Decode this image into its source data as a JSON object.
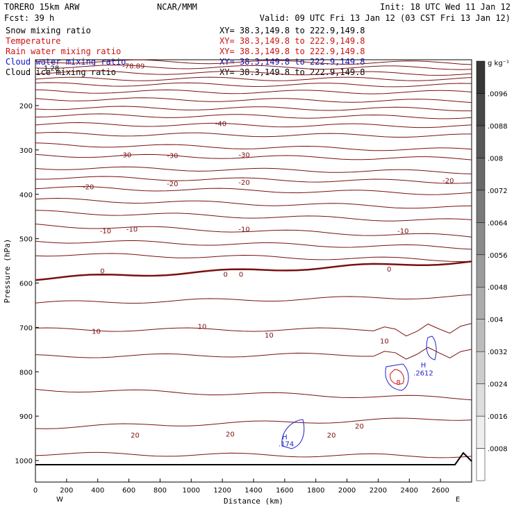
{
  "header": {
    "model": "TORERO  15km ARW",
    "center": "NCAR/MMM",
    "init": "Init: 18 UTC Wed 11 Jan 12",
    "fcst": "Fcst:   39 h",
    "valid": "Valid: 09 UTC Fri 13 Jan 12 (03 CST Fri 13 Jan 12)"
  },
  "fields": [
    {
      "label": "Snow mixing ratio",
      "xy": "XY=  38.3,149.8 to 222.9,149.8",
      "color": "#000000"
    },
    {
      "label": "Temperature",
      "xy": "XY=  38.3,149.8 to 222.9,149.8",
      "color": "#cc1111"
    },
    {
      "label": "Rain water mixing ratio",
      "xy": "XY=  38.3,149.8 to 222.9,149.8",
      "color": "#cc1111"
    },
    {
      "label": "Cloud water mixing ratio",
      "xy": "XY=  38.3,149.8 to 222.9,149.8",
      "color": "#1111cc"
    },
    {
      "label": "Cloud ice mixing ratio",
      "xy": "XY=  38.3,149.8 to 222.9,149.8",
      "color": "#000000"
    }
  ],
  "chart_data": {
    "type": "contour",
    "xlabel": "Distance (km)",
    "ylabel": "Pressure (hPa)",
    "x_ticks": [
      0,
      200,
      400,
      600,
      800,
      1000,
      1200,
      1400,
      1600,
      1800,
      2000,
      2200,
      2400,
      2600
    ],
    "y_ticks": [
      200,
      300,
      400,
      500,
      600,
      700,
      800,
      900,
      1000
    ],
    "xlim": [
      0,
      2800
    ],
    "ylim": [
      1050,
      100
    ],
    "x_end_labels": [
      "W",
      "E"
    ],
    "colorbar": {
      "unit": "g kg⁻¹",
      "ticks": [
        ".0008",
        ".0016",
        ".0024",
        ".0032",
        ".004",
        ".0048",
        ".0056",
        ".0064",
        ".0072",
        ".008",
        ".0088",
        ".0096"
      ]
    },
    "temperature_contour_labels": [
      {
        "text": "-78.89",
        "x": 630,
        "p": 110
      },
      {
        "text": "-40",
        "x": 1190,
        "p": 240
      },
      {
        "text": "-30",
        "x": 580,
        "p": 310
      },
      {
        "text": "-30",
        "x": 880,
        "p": 312
      },
      {
        "text": "-30",
        "x": 1340,
        "p": 310
      },
      {
        "text": "-20",
        "x": 340,
        "p": 382
      },
      {
        "text": "-20",
        "x": 880,
        "p": 375
      },
      {
        "text": "-20",
        "x": 1340,
        "p": 372
      },
      {
        "text": "-20",
        "x": 2650,
        "p": 368
      },
      {
        "text": "-10",
        "x": 450,
        "p": 482
      },
      {
        "text": "-10",
        "x": 620,
        "p": 478
      },
      {
        "text": "-10",
        "x": 1340,
        "p": 478
      },
      {
        "text": "-10",
        "x": 2360,
        "p": 482
      },
      {
        "text": "0",
        "x": 430,
        "p": 572
      },
      {
        "text": "0",
        "x": 1220,
        "p": 580
      },
      {
        "text": "0",
        "x": 1320,
        "p": 580
      },
      {
        "text": "0",
        "x": 2270,
        "p": 568
      },
      {
        "text": "10",
        "x": 390,
        "p": 708
      },
      {
        "text": "10",
        "x": 1070,
        "p": 697
      },
      {
        "text": "10",
        "x": 1500,
        "p": 717
      },
      {
        "text": "10",
        "x": 2240,
        "p": 730
      },
      {
        "text": "20",
        "x": 640,
        "p": 942
      },
      {
        "text": "20",
        "x": 1250,
        "p": 940
      },
      {
        "text": "20",
        "x": 1900,
        "p": 942
      },
      {
        "text": "20",
        "x": 2080,
        "p": 922
      }
    ],
    "cloud_water_labels": [
      {
        "text": "H",
        "x": 1600,
        "p": 946
      },
      {
        "text": ".174",
        "x": 1610,
        "p": 962
      },
      {
        "text": "H",
        "x": 2490,
        "p": 784
      },
      {
        "text": ".2612",
        "x": 2490,
        "p": 802
      }
    ],
    "rain_label": {
      "text": "8",
      "x": 2330,
      "p": 823
    },
    "snow_label": {
      "text": "1.28",
      "x": 0,
      "p": 115
    }
  }
}
